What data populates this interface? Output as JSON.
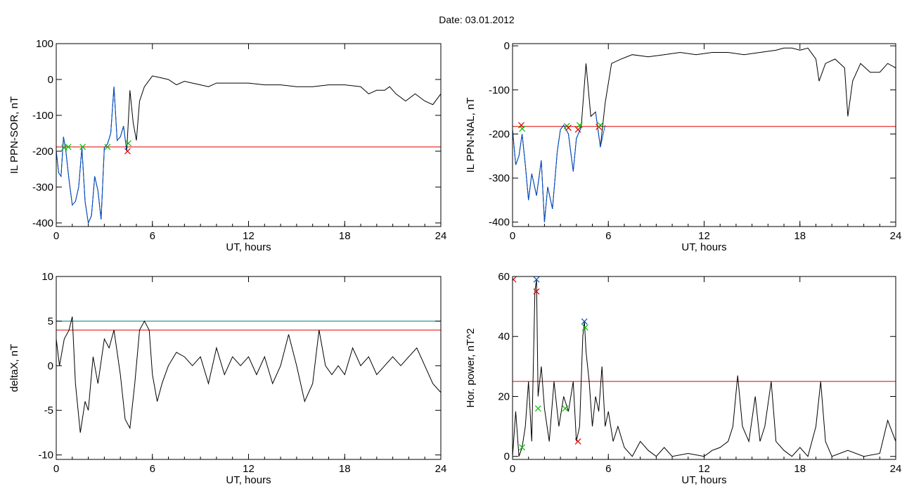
{
  "figure": {
    "title": "Date:  03.01.2012"
  },
  "chart_data": [
    {
      "id": "sor",
      "type": "line",
      "xlabel": "UT, hours",
      "ylabel": "IL PPN-SOR, nT",
      "xlim": [
        0,
        24
      ],
      "ylim": [
        -410,
        100
      ],
      "xticks": [
        0,
        6,
        12,
        18,
        24
      ],
      "yticks": [
        -400,
        -300,
        -200,
        -100,
        0,
        100
      ],
      "grid": false,
      "series": [
        {
          "color": "#000000",
          "x": [
            0,
            0.15,
            0.3,
            0.45,
            0.6,
            0.8,
            1.0,
            1.2,
            1.4,
            1.6,
            1.8,
            2.0,
            2.2,
            2.4,
            2.6,
            2.8,
            3.0,
            3.2,
            3.4,
            3.6,
            3.8,
            4.0,
            4.2,
            4.4,
            4.6,
            4.8,
            5.0,
            5.2,
            5.5,
            6.0,
            6.5,
            7.0,
            7.5,
            8.0,
            8.5,
            9.0,
            9.5,
            10.0,
            11.0,
            12.0,
            13.0,
            14.0,
            15.0,
            16.0,
            17.0,
            18.0,
            19.0,
            19.5,
            20.0,
            20.5,
            20.8,
            21.2,
            21.8,
            22.4,
            23.0,
            23.5,
            24.0
          ],
          "y": [
            -200,
            -260,
            -270,
            -160,
            -200,
            -280,
            -350,
            -340,
            -300,
            -190,
            -340,
            -400,
            -380,
            -270,
            -310,
            -390,
            -190,
            -180,
            -150,
            -20,
            -170,
            -160,
            -130,
            -200,
            -30,
            -120,
            -170,
            -60,
            -20,
            10,
            5,
            0,
            -15,
            -5,
            -10,
            -15,
            -20,
            -10,
            -10,
            -10,
            -15,
            -15,
            -20,
            -20,
            -15,
            -15,
            -20,
            -40,
            -30,
            -30,
            -20,
            -40,
            -60,
            -40,
            -60,
            -70,
            -40
          ]
        },
        {
          "color": "#0050d0",
          "x": [
            0,
            0.15,
            0.3,
            0.45,
            0.6,
            0.8,
            1.0,
            1.2,
            1.4,
            1.6,
            1.8,
            2.0,
            2.2,
            2.4,
            2.6,
            2.8,
            3.0,
            3.2,
            3.4,
            3.6,
            3.8,
            4.0,
            4.2,
            4.4
          ],
          "y": [
            -200,
            -260,
            -270,
            -160,
            -200,
            -280,
            -350,
            -340,
            -300,
            -190,
            -340,
            -400,
            -380,
            -270,
            -310,
            -390,
            -190,
            -180,
            -150,
            -20,
            -170,
            -160,
            -130,
            -200
          ]
        }
      ],
      "hlines": [
        {
          "y": -188,
          "color": "#e00000"
        }
      ],
      "markers": [
        {
          "x": 0.5,
          "y": -190,
          "color": "#00c000"
        },
        {
          "x": 0.75,
          "y": -188,
          "color": "#00c000"
        },
        {
          "x": 1.65,
          "y": -188,
          "color": "#00c000"
        },
        {
          "x": 3.2,
          "y": -188,
          "color": "#00c000"
        },
        {
          "x": 4.45,
          "y": -200,
          "color": "#e00000"
        },
        {
          "x": 4.5,
          "y": -178,
          "color": "#00c000"
        }
      ]
    },
    {
      "id": "nal",
      "type": "line",
      "xlabel": "UT, hours",
      "ylabel": "IL PPN-NAL, nT",
      "xlim": [
        0,
        24
      ],
      "ylim": [
        -410,
        5
      ],
      "xticks": [
        0,
        6,
        12,
        18,
        24
      ],
      "yticks": [
        -400,
        -300,
        -200,
        -100,
        0
      ],
      "grid": false,
      "series": [
        {
          "color": "#000000",
          "x": [
            0,
            0.2,
            0.4,
            0.6,
            0.8,
            1.0,
            1.2,
            1.5,
            1.8,
            2.0,
            2.2,
            2.5,
            2.8,
            3.0,
            3.2,
            3.5,
            3.8,
            4.0,
            4.3,
            4.6,
            4.9,
            5.2,
            5.5,
            5.8,
            6.2,
            6.8,
            7.5,
            8.5,
            9.5,
            10.5,
            11.5,
            12.5,
            13.5,
            14.5,
            15.5,
            16.5,
            17.0,
            17.5,
            18.0,
            18.5,
            19.0,
            19.2,
            19.6,
            20.2,
            20.8,
            21.0,
            21.3,
            21.8,
            22.4,
            23.0,
            23.5,
            24.0
          ],
          "y": [
            -190,
            -270,
            -250,
            -200,
            -270,
            -350,
            -290,
            -340,
            -260,
            -400,
            -320,
            -370,
            -240,
            -190,
            -180,
            -200,
            -285,
            -210,
            -185,
            -40,
            -160,
            -150,
            -230,
            -130,
            -40,
            -30,
            -20,
            -25,
            -20,
            -15,
            -20,
            -15,
            -15,
            -20,
            -15,
            -10,
            -5,
            -5,
            -10,
            -5,
            -30,
            -80,
            -40,
            -30,
            -50,
            -160,
            -80,
            -40,
            -60,
            -60,
            -40,
            -50
          ]
        },
        {
          "color": "#0050d0",
          "x": [
            0,
            0.2,
            0.4,
            0.6,
            0.8,
            1.0,
            1.2,
            1.5,
            1.8,
            2.0,
            2.2,
            2.5,
            2.8,
            3.0,
            3.2,
            3.5,
            3.8,
            4.0,
            4.3
          ],
          "y": [
            -190,
            -270,
            -250,
            -200,
            -270,
            -350,
            -290,
            -340,
            -260,
            -400,
            -320,
            -370,
            -240,
            -190,
            -180,
            -200,
            -285,
            -210,
            -185
          ]
        },
        {
          "color": "#0050d0",
          "x": [
            5.2,
            5.5,
            5.8
          ],
          "y": [
            -150,
            -230,
            -180
          ]
        }
      ],
      "hlines": [
        {
          "y": -183,
          "color": "#e00000"
        }
      ],
      "markers": [
        {
          "x": 0.55,
          "y": -180,
          "color": "#e00000"
        },
        {
          "x": 0.6,
          "y": -188,
          "color": "#00c000"
        },
        {
          "x": 3.4,
          "y": -182,
          "color": "#00c000"
        },
        {
          "x": 3.5,
          "y": -186,
          "color": "#e00000"
        },
        {
          "x": 4.1,
          "y": -190,
          "color": "#e00000"
        },
        {
          "x": 4.2,
          "y": -180,
          "color": "#00c000"
        },
        {
          "x": 5.4,
          "y": -184,
          "color": "#e00000"
        },
        {
          "x": 5.5,
          "y": -180,
          "color": "#00c000"
        }
      ]
    },
    {
      "id": "deltax",
      "type": "line",
      "xlabel": "UT, hours",
      "ylabel": "deltaX, nT",
      "xlim": [
        0,
        24
      ],
      "ylim": [
        -10.5,
        10
      ],
      "xticks": [
        0,
        6,
        12,
        18,
        24
      ],
      "yticks": [
        -10,
        -5,
        0,
        5,
        10
      ],
      "grid": false,
      "series": [
        {
          "color": "#000000",
          "x": [
            0,
            0.2,
            0.5,
            0.8,
            1.0,
            1.2,
            1.5,
            1.8,
            2.0,
            2.3,
            2.6,
            3.0,
            3.3,
            3.6,
            4.0,
            4.3,
            4.6,
            4.9,
            5.2,
            5.5,
            5.8,
            6.0,
            6.3,
            6.6,
            7.0,
            7.5,
            8.0,
            8.5,
            9.0,
            9.5,
            10.0,
            10.5,
            11.0,
            11.5,
            12.0,
            12.5,
            13.0,
            13.5,
            14.0,
            14.5,
            15.0,
            15.5,
            16.0,
            16.4,
            16.8,
            17.2,
            17.6,
            18.0,
            18.5,
            19.0,
            19.5,
            20.0,
            20.5,
            21.0,
            21.5,
            22.0,
            22.5,
            23.0,
            23.5,
            24.0
          ],
          "y": [
            3,
            0,
            3,
            4,
            5.5,
            -2,
            -7.5,
            -4,
            -5,
            1,
            -2,
            3,
            2,
            4,
            -1,
            -6,
            -7,
            -2,
            4,
            5,
            4,
            -1,
            -4,
            -2,
            0,
            1.5,
            1,
            0,
            1,
            -2,
            2,
            -1,
            1,
            0,
            1,
            -1,
            1,
            -2,
            0,
            3.5,
            0,
            -4,
            -2,
            4,
            0,
            -1,
            0,
            -1,
            2,
            0,
            1,
            -1,
            0,
            1,
            0,
            1,
            2,
            0,
            -2,
            -3
          ]
        }
      ],
      "hlines": [
        {
          "y": 5,
          "color": "#008080"
        },
        {
          "y": 4,
          "color": "#e00000"
        }
      ],
      "markers": []
    },
    {
      "id": "power",
      "type": "line",
      "xlabel": "UT, hours",
      "ylabel": "Hor. power, nT^2",
      "xlim": [
        0,
        24
      ],
      "ylim": [
        -1,
        60
      ],
      "xticks": [
        0,
        6,
        12,
        18,
        24
      ],
      "yticks": [
        0,
        20,
        40,
        60
      ],
      "grid": false,
      "series": [
        {
          "color": "#000000",
          "x": [
            0,
            0.2,
            0.4,
            0.6,
            0.8,
            1.0,
            1.2,
            1.4,
            1.5,
            1.6,
            1.8,
            2.0,
            2.3,
            2.6,
            2.9,
            3.2,
            3.5,
            3.8,
            4.0,
            4.2,
            4.4,
            4.5,
            4.6,
            4.8,
            5.0,
            5.2,
            5.4,
            5.6,
            5.8,
            6.0,
            6.3,
            6.6,
            7.0,
            7.5,
            8.0,
            8.5,
            9.0,
            9.5,
            10.0,
            11.0,
            12.0,
            12.5,
            13.0,
            13.5,
            13.8,
            14.1,
            14.4,
            14.8,
            15.2,
            15.5,
            15.8,
            16.2,
            16.5,
            17.0,
            17.5,
            18.0,
            18.5,
            19.0,
            19.3,
            19.6,
            20.0,
            21.0,
            22.0,
            23.0,
            23.5,
            24.0
          ],
          "y": [
            0,
            15,
            0,
            3,
            10,
            25,
            5,
            55,
            59,
            20,
            30,
            16,
            5,
            25,
            10,
            20,
            15,
            25,
            5,
            10,
            40,
            45,
            35,
            25,
            10,
            20,
            15,
            30,
            10,
            15,
            5,
            10,
            3,
            0,
            5,
            2,
            0,
            3,
            0,
            1,
            0,
            2,
            3,
            5,
            10,
            27,
            10,
            5,
            20,
            5,
            10,
            25,
            5,
            2,
            0,
            3,
            0,
            10,
            25,
            5,
            0,
            2,
            0,
            1,
            12,
            5
          ]
        }
      ],
      "hlines": [
        {
          "y": 25,
          "color": "#e00000"
        }
      ],
      "markers": [
        {
          "x": 0.05,
          "y": 59,
          "color": "#e00000"
        },
        {
          "x": 0.6,
          "y": 3,
          "color": "#00c000"
        },
        {
          "x": 1.5,
          "y": 59,
          "color": "#0050d0"
        },
        {
          "x": 1.5,
          "y": 55,
          "color": "#e00000"
        },
        {
          "x": 1.6,
          "y": 16,
          "color": "#00c000"
        },
        {
          "x": 3.3,
          "y": 16,
          "color": "#00c000"
        },
        {
          "x": 4.1,
          "y": 5,
          "color": "#e00000"
        },
        {
          "x": 4.5,
          "y": 45,
          "color": "#0050d0"
        },
        {
          "x": 4.55,
          "y": 43,
          "color": "#00c000"
        }
      ]
    }
  ]
}
